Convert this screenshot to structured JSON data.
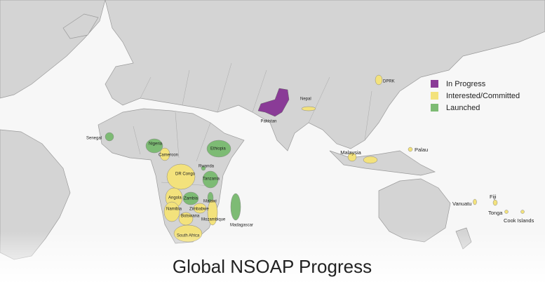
{
  "title": "Global NSOAP Progress",
  "legend": [
    {
      "label": "In Progress",
      "color": "#8a3b97"
    },
    {
      "label": "Interested/Committed",
      "color": "#f3e27c"
    },
    {
      "label": "Launched",
      "color": "#7dbb74"
    }
  ],
  "countries": [
    {
      "name": "DPRK",
      "status": 1
    },
    {
      "name": "Nepal",
      "status": 1
    },
    {
      "name": "Pakistan",
      "status": 0
    },
    {
      "name": "Senegal",
      "status": 2
    },
    {
      "name": "Nigeria",
      "status": 2
    },
    {
      "name": "Cameroon",
      "status": 1
    },
    {
      "name": "Ethiopia",
      "status": 2
    },
    {
      "name": "DR Congo",
      "status": 1
    },
    {
      "name": "Rwanda",
      "status": 2
    },
    {
      "name": "Tanzania",
      "status": 2
    },
    {
      "name": "Angola",
      "status": 1
    },
    {
      "name": "Zambia",
      "status": 2
    },
    {
      "name": "Malawi",
      "status": 2
    },
    {
      "name": "Namibia",
      "status": 1
    },
    {
      "name": "Zimbabwe",
      "status": 1
    },
    {
      "name": "Botswana",
      "status": 1
    },
    {
      "name": "Mozambique",
      "status": 1
    },
    {
      "name": "Madagascar",
      "status": 2
    },
    {
      "name": "South Africa",
      "status": 1
    },
    {
      "name": "Malaysia",
      "status": 1
    },
    {
      "name": "Palau",
      "status": 1
    },
    {
      "name": "Vanuatu",
      "status": 1
    },
    {
      "name": "Fiji",
      "status": 1
    },
    {
      "name": "Tonga",
      "status": 1
    },
    {
      "name": "Cook Islands",
      "status": 1
    }
  ]
}
